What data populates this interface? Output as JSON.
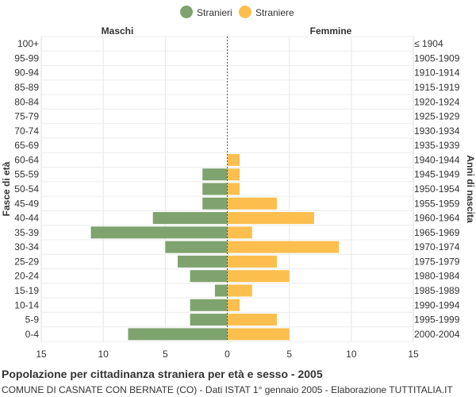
{
  "chart_data": {
    "type": "bar",
    "orientation": "horizontal-population-pyramid",
    "title": "Popolazione per cittadinanza straniera per età e sesso - 2005",
    "subtitle": "COMUNE DI CASNATE CON BERNATE (CO) - Dati ISTAT 1° gennaio 2005 - Elaborazione TUTTITALIA.IT",
    "left_header": "Maschi",
    "right_header": "Femmine",
    "ylabel_left": "Fasce di età",
    "ylabel_right": "Anni di nascita",
    "categories": [
      "100+",
      "95-99",
      "90-94",
      "85-89",
      "80-84",
      "75-79",
      "70-74",
      "65-69",
      "60-64",
      "55-59",
      "50-54",
      "45-49",
      "40-44",
      "35-39",
      "30-34",
      "25-29",
      "20-24",
      "15-19",
      "10-14",
      "5-9",
      "0-4"
    ],
    "birth_years": [
      "≤ 1904",
      "1905-1909",
      "1910-1914",
      "1915-1919",
      "1920-1924",
      "1925-1929",
      "1930-1934",
      "1935-1939",
      "1940-1944",
      "1945-1949",
      "1950-1954",
      "1955-1959",
      "1960-1964",
      "1965-1969",
      "1970-1974",
      "1975-1979",
      "1980-1984",
      "1985-1989",
      "1990-1994",
      "1995-1999",
      "2000-2004"
    ],
    "series": [
      {
        "name": "Stranieri",
        "color": "#7fa36f",
        "side": "left",
        "values": [
          0,
          0,
          0,
          0,
          0,
          0,
          0,
          0,
          0,
          2,
          2,
          2,
          6,
          11,
          5,
          4,
          3,
          1,
          3,
          3,
          8
        ]
      },
      {
        "name": "Straniere",
        "color": "#fcbf4e",
        "side": "right",
        "values": [
          0,
          0,
          0,
          0,
          0,
          0,
          0,
          0,
          1,
          1,
          1,
          4,
          7,
          2,
          9,
          4,
          5,
          2,
          1,
          4,
          5
        ]
      }
    ],
    "x_ticks": [
      "15",
      "10",
      "5",
      "0",
      "5",
      "10",
      "15"
    ],
    "x_tick_values": [
      -15,
      -10,
      -5,
      0,
      5,
      10,
      15
    ],
    "xlim": [
      -15,
      15
    ],
    "grid": true,
    "legend_position": "top-center"
  }
}
